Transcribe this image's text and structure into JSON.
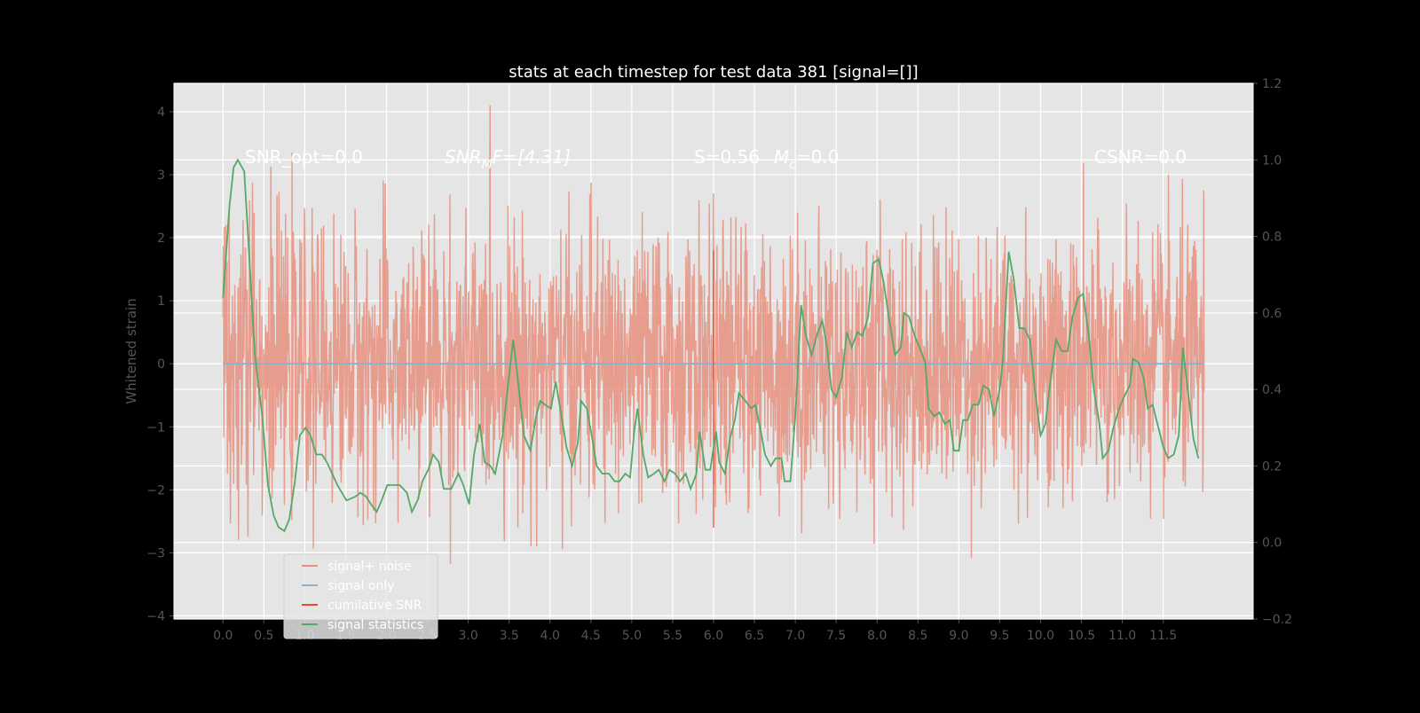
{
  "chart_data": {
    "type": "line",
    "title": "stats at each timestep for test data 381 [signal=[]]",
    "xlabel": "",
    "ylabel": "Whitened strain",
    "ylabel_right": "",
    "xlim": [
      -0.6,
      12.6
    ],
    "ylim": [
      -4.05,
      4.45
    ],
    "ylim_right": [
      -0.2,
      1.2
    ],
    "x_ticks": [
      "0.0",
      "0.5",
      "1.0",
      "1.5",
      "2.0",
      "2.5",
      "3.0",
      "3.5",
      "4.0",
      "4.5",
      "5.0",
      "5.5",
      "6.0",
      "6.5",
      "7.0",
      "7.5",
      "8.0",
      "8.5",
      "9.0",
      "9.5",
      "10.0",
      "10.5",
      "11.0",
      "11.5"
    ],
    "y_ticks": [
      "4",
      "3",
      "2",
      "1",
      "0",
      "−1",
      "−2",
      "−3",
      "−4"
    ],
    "y_ticks_right": [
      "1.2",
      "1.0",
      "0.8",
      "0.6",
      "0.4",
      "0.2",
      "0.0",
      "−0.2"
    ],
    "grid": true,
    "background": "#e5e5e5",
    "legend_position": "lower-left",
    "annotations": [
      "SNR_opt=0.0",
      "SNR",
      "M",
      "F=[4.31]",
      "S=0.56",
      "M",
      "c",
      "=0.0",
      "CSNR=0.0"
    ],
    "series": [
      {
        "name": "signal+ noise",
        "color": "#e8907f",
        "axis": "left",
        "x_range": [
          0,
          12.0
        ],
        "y_extent": [
          -3.7,
          4.1
        ],
        "kind": "noise"
      },
      {
        "name": "signal only",
        "color": "#8fb0cc",
        "axis": "left",
        "x": [
          0,
          12.0
        ],
        "y": [
          0,
          0
        ]
      },
      {
        "name": "cumilative SNR",
        "color": "#e24a33",
        "axis": "left",
        "x": [
          6.0,
          6.0
        ],
        "y": [
          -2.6,
          1.8
        ]
      },
      {
        "name": "signal statistics",
        "color": "#55a868",
        "axis": "right",
        "x": [
          0,
          0.08,
          0.13,
          0.18,
          0.26,
          0.31,
          0.39,
          0.48,
          0.55,
          0.62,
          0.68,
          0.75,
          0.81,
          0.88,
          0.94,
          1.01,
          1.07,
          1.14,
          1.21,
          1.27,
          1.4,
          1.51,
          1.62,
          1.68,
          1.75,
          1.81,
          1.88,
          1.94,
          2.01,
          2.07,
          2.16,
          2.25,
          2.31,
          2.38,
          2.44,
          2.51,
          2.57,
          2.64,
          2.7,
          2.79,
          2.88,
          2.94,
          3.01,
          3.07,
          3.14,
          3.2,
          3.27,
          3.33,
          3.42,
          3.48,
          3.55,
          3.61,
          3.68,
          3.76,
          3.83,
          3.88,
          3.94,
          4.01,
          4.07,
          4.14,
          4.2,
          4.27,
          4.34,
          4.38,
          4.45,
          4.51,
          4.57,
          4.64,
          4.72,
          4.79,
          4.85,
          4.92,
          4.98,
          5.03,
          5.07,
          5.14,
          5.2,
          5.27,
          5.33,
          5.4,
          5.46,
          5.53,
          5.59,
          5.66,
          5.72,
          5.79,
          5.83,
          5.9,
          5.96,
          6.03,
          6.07,
          6.14,
          6.2,
          6.26,
          6.31,
          6.39,
          6.46,
          6.51,
          6.57,
          6.63,
          6.7,
          6.76,
          6.83,
          6.87,
          6.94,
          7.0,
          7.07,
          7.13,
          7.2,
          7.26,
          7.33,
          7.39,
          7.44,
          7.5,
          7.57,
          7.63,
          7.69,
          7.76,
          7.82,
          7.89,
          7.95,
          8.02,
          8.08,
          8.15,
          8.22,
          8.29,
          8.33,
          8.39,
          8.46,
          8.52,
          8.59,
          8.63,
          8.7,
          8.76,
          8.83,
          8.89,
          8.94,
          9.0,
          9.05,
          9.11,
          9.17,
          9.24,
          9.3,
          9.37,
          9.43,
          9.5,
          9.54,
          9.61,
          9.67,
          9.74,
          9.8,
          9.87,
          9.93,
          10.0,
          10.06,
          10.13,
          10.19,
          10.26,
          10.33,
          10.39,
          10.46,
          10.52,
          10.59,
          10.65,
          10.72,
          10.76,
          10.83,
          10.89,
          10.96,
          11.02,
          11.09,
          11.13,
          11.2,
          11.26,
          11.31,
          11.37,
          11.43,
          11.5,
          11.56,
          11.63,
          11.69,
          11.74,
          11.8,
          11.87,
          11.93
        ],
        "y": [
          0.64,
          0.88,
          0.98,
          1.0,
          0.97,
          0.79,
          0.49,
          0.33,
          0.15,
          0.07,
          0.04,
          0.03,
          0.06,
          0.16,
          0.28,
          0.3,
          0.28,
          0.23,
          0.23,
          0.21,
          0.15,
          0.11,
          0.12,
          0.13,
          0.12,
          0.1,
          0.08,
          0.11,
          0.15,
          0.15,
          0.15,
          0.13,
          0.08,
          0.11,
          0.16,
          0.19,
          0.23,
          0.21,
          0.14,
          0.14,
          0.18,
          0.15,
          0.1,
          0.23,
          0.31,
          0.21,
          0.2,
          0.18,
          0.28,
          0.4,
          0.53,
          0.42,
          0.28,
          0.24,
          0.33,
          0.37,
          0.36,
          0.35,
          0.42,
          0.33,
          0.25,
          0.2,
          0.26,
          0.37,
          0.35,
          0.28,
          0.2,
          0.18,
          0.18,
          0.16,
          0.16,
          0.18,
          0.17,
          0.29,
          0.35,
          0.23,
          0.17,
          0.18,
          0.19,
          0.16,
          0.19,
          0.18,
          0.16,
          0.18,
          0.14,
          0.18,
          0.29,
          0.19,
          0.19,
          0.29,
          0.21,
          0.18,
          0.27,
          0.32,
          0.39,
          0.37,
          0.35,
          0.36,
          0.3,
          0.23,
          0.2,
          0.22,
          0.22,
          0.16,
          0.16,
          0.33,
          0.62,
          0.54,
          0.49,
          0.54,
          0.58,
          0.51,
          0.4,
          0.38,
          0.43,
          0.55,
          0.51,
          0.55,
          0.54,
          0.59,
          0.73,
          0.74,
          0.68,
          0.58,
          0.49,
          0.51,
          0.6,
          0.59,
          0.54,
          0.51,
          0.47,
          0.35,
          0.33,
          0.34,
          0.31,
          0.32,
          0.24,
          0.24,
          0.32,
          0.32,
          0.36,
          0.36,
          0.41,
          0.4,
          0.33,
          0.4,
          0.48,
          0.76,
          0.69,
          0.56,
          0.56,
          0.53,
          0.4,
          0.28,
          0.31,
          0.44,
          0.53,
          0.5,
          0.5,
          0.59,
          0.64,
          0.65,
          0.54,
          0.4,
          0.31,
          0.22,
          0.24,
          0.3,
          0.35,
          0.38,
          0.41,
          0.48,
          0.47,
          0.43,
          0.35,
          0.36,
          0.31,
          0.25,
          0.22,
          0.23,
          0.28,
          0.51,
          0.4,
          0.27,
          0.22
        ]
      }
    ]
  }
}
